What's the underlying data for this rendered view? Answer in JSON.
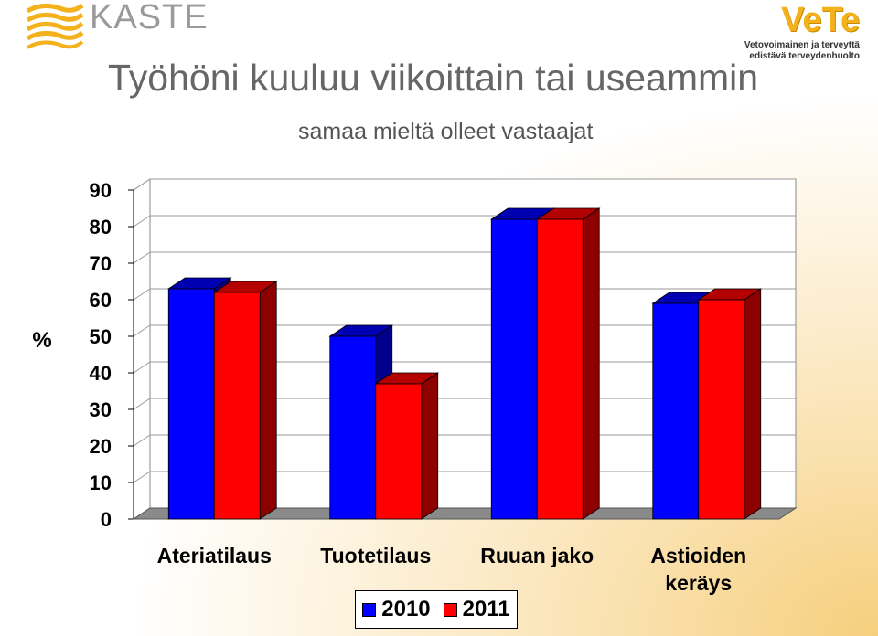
{
  "header": {
    "left_logo_text": "KASTE",
    "right_logo_text": "VeTe",
    "right_logo_sub1": "Vetovoimainen ja terveyttä",
    "right_logo_sub2": "edistävä terveydenhuolto"
  },
  "title": "Työhöni kuuluu viikoittain tai useammin",
  "subtitle": "samaa mieltä olleet vastaajat",
  "colors": {
    "series_2010": "#0000ff",
    "series_2011": "#ff0000",
    "accent": "#f3b21b"
  },
  "chart_data": {
    "type": "bar",
    "categories": [
      "Ateriatilaus",
      "Tuotetilaus",
      "Ruuan jako",
      "Astioiden keräys"
    ],
    "series": [
      {
        "name": "2010",
        "values": [
          63,
          50,
          82,
          59
        ]
      },
      {
        "name": "2011",
        "values": [
          62,
          37,
          82,
          60
        ]
      }
    ],
    "ylabel": "%",
    "ylim": [
      0,
      90
    ],
    "yticks": [
      0,
      10,
      20,
      30,
      40,
      50,
      60,
      70,
      80,
      90
    ],
    "grid": true,
    "legend_position": "bottom"
  }
}
